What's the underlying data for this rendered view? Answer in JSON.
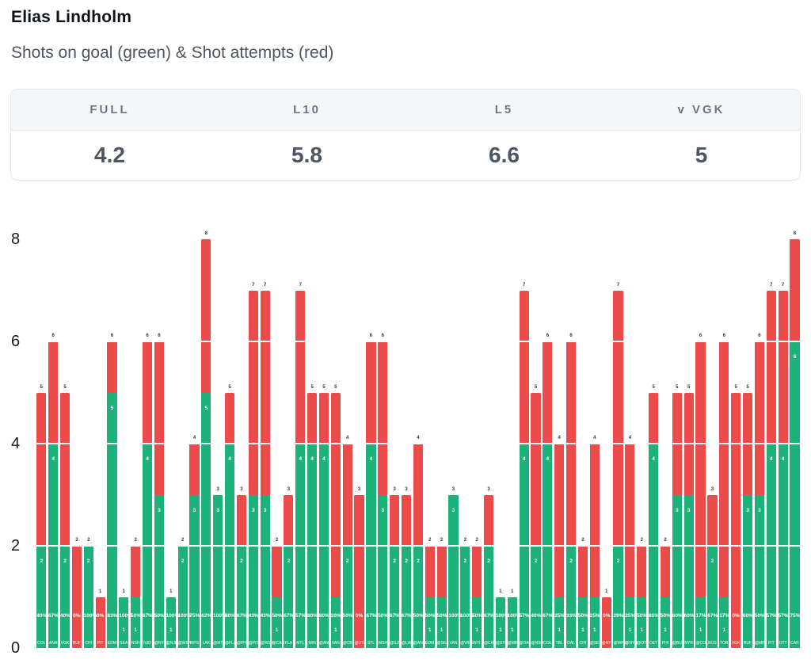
{
  "header": {
    "title": "Elias Lindholm",
    "subtitle": "Shots on goal (green) & Shot attempts (red)"
  },
  "summary": {
    "columns": [
      {
        "label": "FULL",
        "value": "4.2"
      },
      {
        "label": "L10",
        "value": "5.8"
      },
      {
        "label": "L5",
        "value": "6.6"
      },
      {
        "label": "v VGK",
        "value": "5"
      }
    ]
  },
  "colors": {
    "green": "#1db17c",
    "red": "#ec4b4b",
    "bar_total_label": "#2b3647",
    "bar_inner_text": "#ffffff",
    "axis_text": "#141b28",
    "title_text": "#10131c",
    "subtitle_text": "#4d5563",
    "card_header_bg": "#f6f7f9",
    "card_border": "#e7e9ee"
  },
  "chart_data": {
    "type": "bar",
    "stacked": true,
    "title": "Shots on goal (green) & Shot attempts (red)",
    "xlabel": "",
    "ylabel": "",
    "ylim": [
      0,
      8
    ],
    "yticks": [
      0,
      2,
      4,
      6,
      8
    ],
    "grid": "white notch lines over bars at 2,4,6",
    "legend": "none",
    "series_semantics": {
      "green": "shots on goal (sog)",
      "red": "shot attempts (att, full bar height)",
      "pct": "sog / att shown at bar bottom",
      "top_label": "att total above bar"
    },
    "games": [
      {
        "opp": "COL",
        "sog": 2,
        "att": 5,
        "pct": "40%"
      },
      {
        "opp": "ANA",
        "sog": 4,
        "att": 6,
        "pct": "67%"
      },
      {
        "opp": "VGK",
        "sog": 2,
        "att": 5,
        "pct": "40%"
      },
      {
        "opp": "BUF",
        "sog": 0,
        "att": 2,
        "pct": "0%"
      },
      {
        "opp": "CHI",
        "sog": 2,
        "att": 2,
        "pct": "100%"
      },
      {
        "opp": "PIT",
        "sog": 0,
        "att": 1,
        "pct": "0%"
      },
      {
        "opp": "EDM",
        "sog": 5,
        "att": 6,
        "pct": "83%"
      },
      {
        "opp": "SEA",
        "sog": 1,
        "att": 1,
        "pct": "100%"
      },
      {
        "opp": "NSH",
        "sog": 1,
        "att": 2,
        "pct": "50%"
      },
      {
        "opp": "NJD",
        "sog": 4,
        "att": 6,
        "pct": "67%"
      },
      {
        "opp": "@NYI",
        "sog": 3,
        "att": 6,
        "pct": "50%"
      },
      {
        "opp": "@NJD",
        "sog": 1,
        "att": 1,
        "pct": "100%"
      },
      {
        "opp": "@WSH",
        "sog": 2,
        "att": 2,
        "pct": "100%"
      },
      {
        "opp": "WPG",
        "sog": 3,
        "att": 4,
        "pct": "75%"
      },
      {
        "opp": "LAK",
        "sog": 5,
        "att": 8,
        "pct": "62%"
      },
      {
        "opp": "@MTL",
        "sog": 3,
        "att": 3,
        "pct": "100%"
      },
      {
        "opp": "@FLA",
        "sog": 4,
        "att": 5,
        "pct": "80%"
      },
      {
        "opp": "@PHI",
        "sog": 2,
        "att": 3,
        "pct": "67%"
      },
      {
        "opp": "@PIT",
        "sog": 3,
        "att": 7,
        "pct": "43%"
      },
      {
        "opp": "@WSH",
        "sog": 3,
        "att": 7,
        "pct": "43%"
      },
      {
        "opp": "@CAR",
        "sog": 1,
        "att": 2,
        "pct": "50%"
      },
      {
        "opp": "FLA",
        "sog": 2,
        "att": 3,
        "pct": "67%"
      },
      {
        "opp": "MTL",
        "sog": 4,
        "att": 7,
        "pct": "57%"
      },
      {
        "opp": "MIN",
        "sog": 4,
        "att": 5,
        "pct": "80%"
      },
      {
        "opp": "@ANA",
        "sog": 4,
        "att": 5,
        "pct": "80%"
      },
      {
        "opp": "VAN",
        "sog": 1,
        "att": 5,
        "pct": "20%"
      },
      {
        "opp": "@CBJ",
        "sog": 2,
        "att": 4,
        "pct": "50%"
      },
      {
        "opp": "@UTA",
        "sog": 0,
        "att": 3,
        "pct": "0%"
      },
      {
        "opp": "STL",
        "sog": 4,
        "att": 6,
        "pct": "67%"
      },
      {
        "opp": "WSH",
        "sog": 3,
        "att": 6,
        "pct": "50%"
      },
      {
        "opp": "@SJS",
        "sog": 2,
        "att": 3,
        "pct": "67%"
      },
      {
        "opp": "@LAK",
        "sog": 2,
        "att": 3,
        "pct": "67%"
      },
      {
        "opp": "@ANA",
        "sog": 2,
        "att": 4,
        "pct": "50%"
      },
      {
        "opp": "EDM",
        "sog": 1,
        "att": 2,
        "pct": "50%"
      },
      {
        "opp": "@SEA",
        "sog": 1,
        "att": 2,
        "pct": "50%"
      },
      {
        "opp": "VAN",
        "sog": 3,
        "att": 3,
        "pct": "100%"
      },
      {
        "opp": "@WPG",
        "sog": 2,
        "att": 2,
        "pct": "100%"
      },
      {
        "opp": "NYI",
        "sog": 1,
        "att": 2,
        "pct": "50%"
      },
      {
        "opp": "@CHI",
        "sog": 2,
        "att": 3,
        "pct": "67%"
      },
      {
        "opp": "@STL",
        "sog": 1,
        "att": 1,
        "pct": "100%"
      },
      {
        "opp": "@MIN",
        "sog": 1,
        "att": 1,
        "pct": "100%"
      },
      {
        "opp": "@DAL",
        "sog": 4,
        "att": 7,
        "pct": "57%"
      },
      {
        "opp": "@NSH",
        "sog": 2,
        "att": 5,
        "pct": "40%"
      },
      {
        "opp": "COL",
        "sog": 4,
        "att": 6,
        "pct": "67%"
      },
      {
        "opp": "TBL",
        "sog": 1,
        "att": 4,
        "pct": "25%"
      },
      {
        "opp": "DAL",
        "sog": 2,
        "att": 6,
        "pct": "33%"
      },
      {
        "opp": "CHI",
        "sog": 1,
        "att": 2,
        "pct": "50%"
      },
      {
        "opp": "@SEA",
        "sog": 1,
        "att": 4,
        "pct": "25%"
      },
      {
        "opp": "@NYI",
        "sog": 0,
        "att": 1,
        "pct": "0%"
      },
      {
        "opp": "@WPG",
        "sog": 2,
        "att": 7,
        "pct": "29%"
      },
      {
        "opp": "@NYR",
        "sog": 1,
        "att": 4,
        "pct": "25%"
      },
      {
        "opp": "@OTT",
        "sog": 1,
        "att": 2,
        "pct": "50%"
      },
      {
        "opp": "DET",
        "sog": 4,
        "att": 5,
        "pct": "80%"
      },
      {
        "opp": "PHI",
        "sog": 1,
        "att": 2,
        "pct": "50%"
      },
      {
        "opp": "@BUF",
        "sog": 3,
        "att": 5,
        "pct": "60%"
      },
      {
        "opp": "NYR",
        "sog": 3,
        "att": 5,
        "pct": "60%"
      },
      {
        "opp": "@COL",
        "sog": 1,
        "att": 6,
        "pct": "17%"
      },
      {
        "opp": "BOS",
        "sog": 2,
        "att": 3,
        "pct": "67%"
      },
      {
        "opp": "TOR",
        "sog": 1,
        "att": 6,
        "pct": "17%"
      },
      {
        "opp": "VGK",
        "sog": 0,
        "att": 5,
        "pct": "0%"
      },
      {
        "opp": "BUF",
        "sog": 3,
        "att": 5,
        "pct": "60%"
      },
      {
        "opp": "@MIN",
        "sog": 3,
        "att": 6,
        "pct": "50%"
      },
      {
        "opp": "PIT",
        "sog": 4,
        "att": 7,
        "pct": "57%"
      },
      {
        "opp": "OTT",
        "sog": 4,
        "att": 7,
        "pct": "57%"
      },
      {
        "opp": "CAR",
        "sog": 6,
        "att": 8,
        "pct": "75%"
      }
    ]
  }
}
